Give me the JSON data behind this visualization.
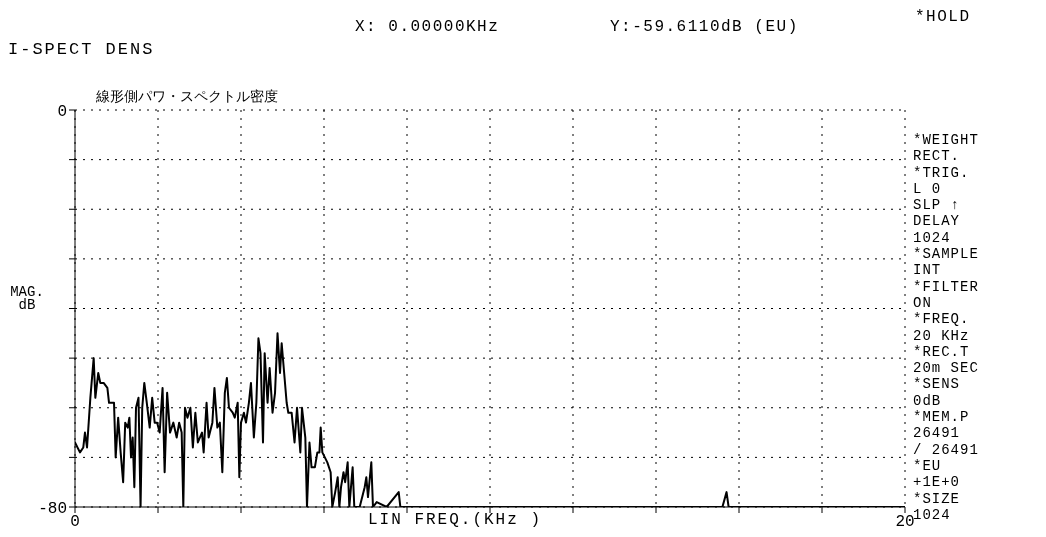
{
  "chart_data": {
    "type": "line",
    "title": "I-SPECT DENS",
    "subtitle": "線形側パワ・スペクトル密度",
    "xlabel": "LIN FREQ.(KHz )",
    "ylabel": "MAG. dB",
    "x": [
      0,
      0.12,
      0.2,
      0.24,
      0.29,
      0.37,
      0.45,
      0.49,
      0.56,
      0.61,
      0.69,
      0.78,
      0.82,
      0.94,
      0.98,
      1.04,
      1.1,
      1.16,
      1.21,
      1.27,
      1.31,
      1.35,
      1.39,
      1.43,
      1.47,
      1.53,
      1.58,
      1.62,
      1.67,
      1.73,
      1.8,
      1.86,
      1.92,
      1.98,
      2.04,
      2.11,
      2.16,
      2.22,
      2.29,
      2.37,
      2.45,
      2.51,
      2.57,
      2.61,
      2.65,
      2.71,
      2.78,
      2.84,
      2.9,
      2.96,
      3.06,
      3.1,
      3.17,
      3.22,
      3.31,
      3.36,
      3.43,
      3.49,
      3.55,
      3.61,
      3.66,
      3.71,
      3.8,
      3.85,
      3.92,
      3.96,
      4,
      4.07,
      4.12,
      4.19,
      4.24,
      4.31,
      4.37,
      4.42,
      4.47,
      4.53,
      4.57,
      4.64,
      4.69,
      4.76,
      4.82,
      4.88,
      4.94,
      4.98,
      5.04,
      5.1,
      5.14,
      5.22,
      5.29,
      5.35,
      5.43,
      5.47,
      5.55,
      5.59,
      5.65,
      5.7,
      5.78,
      5.84,
      5.89,
      5.92,
      5.96,
      6.02,
      6.08,
      6.16,
      6.2,
      6.27,
      6.33,
      6.37,
      6.41,
      6.47,
      6.51,
      6.57,
      6.61,
      6.69,
      6.73,
      6.86,
      6.98,
      7.02,
      7.06,
      7.14,
      7.18,
      7.27,
      7.51,
      7.8,
      7.84,
      15.6,
      15.7,
      15.75,
      20
    ],
    "series": [
      {
        "color": "#000000",
        "values": [
          -67,
          -69,
          -68,
          -65,
          -68,
          -58,
          -50,
          -58,
          -53,
          -55,
          -55,
          -56,
          -59,
          -59,
          -70,
          -62,
          -69,
          -75,
          -63,
          -64,
          -62,
          -70,
          -66,
          -76,
          -60,
          -58,
          -80,
          -60,
          -55,
          -59,
          -64,
          -58,
          -63,
          -63,
          -65,
          -56,
          -73,
          -57,
          -65,
          -63,
          -66,
          -63,
          -65,
          -80,
          -60,
          -62,
          -60,
          -68,
          -61,
          -67,
          -65,
          -69,
          -59,
          -66,
          -63,
          -56,
          -64,
          -63,
          -73,
          -57,
          -54,
          -60,
          -61,
          -62,
          -59,
          -74,
          -63,
          -61,
          -63,
          -59,
          -55,
          -66,
          -59,
          -46,
          -49,
          -67,
          -49,
          -59,
          -52,
          -61,
          -57,
          -45,
          -53,
          -47,
          -53,
          -59,
          -61,
          -61,
          -67,
          -60,
          -69,
          -60,
          -66,
          -80,
          -67,
          -72,
          -72,
          -69,
          -69,
          -64,
          -69,
          -70,
          -71,
          -73,
          -80,
          -77,
          -74,
          -80,
          -76,
          -73,
          -75,
          -71,
          -80,
          -72,
          -80,
          -80,
          -76,
          -74,
          -78,
          -71,
          -80,
          -79,
          -80,
          -77,
          -80,
          -80,
          -77,
          -80,
          -80
        ]
      }
    ],
    "xlim": [
      0,
      20
    ],
    "xticks": [
      {
        "value": 0,
        "label": "0"
      },
      {
        "value": 2,
        "label": null
      },
      {
        "value": 4,
        "label": null
      },
      {
        "value": 6,
        "label": null
      },
      {
        "value": 8,
        "label": null
      },
      {
        "value": 10,
        "label": null
      },
      {
        "value": 12,
        "label": null
      },
      {
        "value": 14,
        "label": null
      },
      {
        "value": 16,
        "label": null
      },
      {
        "value": 18,
        "label": null
      },
      {
        "value": 20,
        "label": "20"
      }
    ],
    "ylim": [
      -80,
      0
    ],
    "yticks": [
      {
        "value": -80,
        "label": "-80"
      },
      {
        "value": -70,
        "label": null
      },
      {
        "value": -60,
        "label": null
      },
      {
        "value": -50,
        "label": null
      },
      {
        "value": -40,
        "label": null
      },
      {
        "value": -30,
        "label": null
      },
      {
        "value": -20,
        "label": null
      },
      {
        "value": -10,
        "label": null
      },
      {
        "value": 0,
        "label": "0"
      }
    ],
    "grid": true,
    "annotations": [
      "X: 0.00000KHz",
      "Y:-59.6110dB (EU)",
      "*HOLD",
      "*WEIGHT",
      "RECT.",
      "*TRIG.",
      "L 0",
      "SLP ↑",
      "DELAY",
      "1024",
      "*SAMPLE",
      "INT",
      "*FILTER",
      "ON",
      "*FREQ.",
      "20 KHz",
      "*REC.T",
      "20m SEC",
      "*SENS",
      "0dB",
      "*MEM.P",
      "26491",
      "/ 26491",
      "*EU",
      "+1E+0",
      "*SIZE",
      "1024"
    ]
  }
}
